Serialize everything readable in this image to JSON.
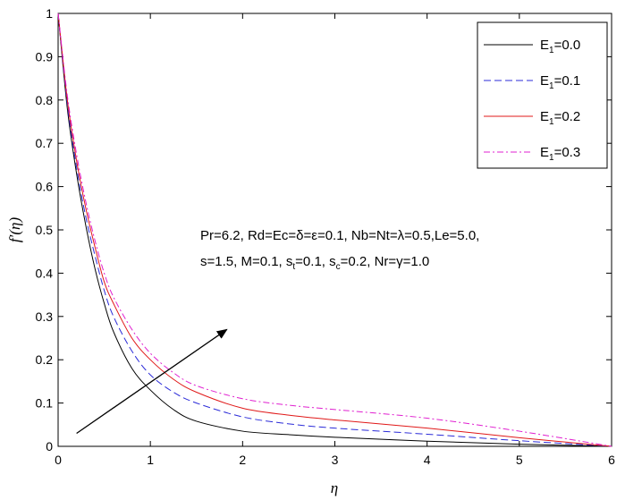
{
  "chart_data": {
    "type": "line",
    "xlabel": "η",
    "ylabel": "f′(η)",
    "xlim": [
      0,
      6
    ],
    "ylim": [
      0,
      1
    ],
    "xticks": [
      0,
      1,
      2,
      3,
      4,
      5,
      6
    ],
    "yticks": [
      0,
      0.1,
      0.2,
      0.3,
      0.4,
      0.5,
      0.6,
      0.7,
      0.8,
      0.9,
      1
    ],
    "grid": false,
    "legend_position": "top-right",
    "series": [
      {
        "name": "E1=0.0",
        "legend_base": "E",
        "legend_sub": "1",
        "legend_value": "=0.0",
        "color": "#000000",
        "dash": "solid",
        "x": [
          0,
          0.1,
          0.2,
          0.3,
          0.4,
          0.5,
          0.6,
          0.8,
          1.0,
          1.25,
          1.5,
          2.0,
          2.5,
          3.0,
          4.0,
          5.0,
          6.0
        ],
        "y": [
          1.0,
          0.78,
          0.63,
          0.51,
          0.41,
          0.33,
          0.265,
          0.18,
          0.13,
          0.085,
          0.058,
          0.035,
          0.027,
          0.021,
          0.012,
          0.005,
          0.0
        ]
      },
      {
        "name": "E1=0.1",
        "legend_base": "E",
        "legend_sub": "1",
        "legend_value": "=0.1",
        "color": "#2b2bd8",
        "dash": "dashed",
        "x": [
          0,
          0.1,
          0.2,
          0.3,
          0.4,
          0.5,
          0.6,
          0.8,
          1.0,
          1.25,
          1.5,
          2.0,
          2.5,
          3.0,
          4.0,
          5.0,
          6.0
        ],
        "y": [
          1.0,
          0.79,
          0.645,
          0.53,
          0.44,
          0.36,
          0.3,
          0.22,
          0.165,
          0.125,
          0.1,
          0.068,
          0.052,
          0.042,
          0.028,
          0.013,
          0.0
        ]
      },
      {
        "name": "E1=0.2",
        "legend_base": "E",
        "legend_sub": "1",
        "legend_value": "=0.2",
        "color": "#e01818",
        "dash": "solid",
        "x": [
          0,
          0.1,
          0.2,
          0.3,
          0.4,
          0.5,
          0.6,
          0.8,
          1.0,
          1.25,
          1.5,
          2.0,
          2.5,
          3.0,
          4.0,
          5.0,
          6.0
        ],
        "y": [
          1.0,
          0.8,
          0.66,
          0.55,
          0.46,
          0.38,
          0.33,
          0.25,
          0.2,
          0.155,
          0.125,
          0.088,
          0.072,
          0.061,
          0.042,
          0.02,
          0.0
        ]
      },
      {
        "name": "E1=0.3",
        "legend_base": "E",
        "legend_sub": "1",
        "legend_value": "=0.3",
        "color": "#e020d0",
        "dash": "dashdot",
        "x": [
          0,
          0.1,
          0.2,
          0.3,
          0.4,
          0.5,
          0.6,
          0.8,
          1.0,
          1.25,
          1.5,
          2.0,
          2.5,
          3.0,
          4.0,
          5.0,
          6.0
        ],
        "y": [
          1.0,
          0.81,
          0.675,
          0.565,
          0.475,
          0.4,
          0.345,
          0.27,
          0.215,
          0.17,
          0.14,
          0.11,
          0.095,
          0.085,
          0.065,
          0.035,
          0.0
        ]
      }
    ],
    "annotation": {
      "line1": "Pr=6.2, Rd=Ec=δ=ε=0.1, Nb=Nt=λ=0.5,Le=5.0,",
      "line2_parts": [
        "s=1.5, M=0.1, s",
        "t",
        "=0.1, s",
        "c",
        "=0.2, Nr=γ=1.0"
      ]
    },
    "arrow": {
      "from": [
        0.2,
        0.03
      ],
      "to": [
        1.83,
        0.27
      ]
    }
  }
}
